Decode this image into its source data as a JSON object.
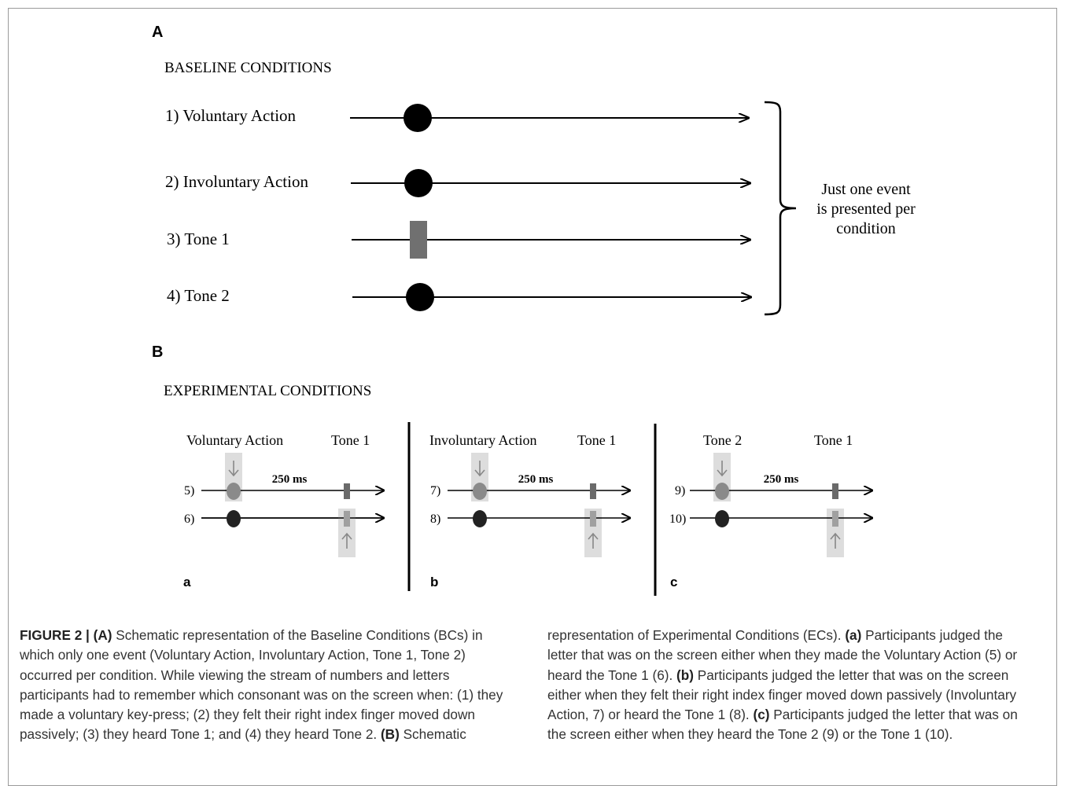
{
  "figure": {
    "panel_a_letter": "A",
    "panel_b_letter": "B",
    "baseline_title": "BASELINE CONDITIONS",
    "baseline_rows": [
      {
        "label": "1) Voluntary Action",
        "event": "circle"
      },
      {
        "label": "2) Involuntary Action",
        "event": "circle"
      },
      {
        "label": "3) Tone 1",
        "event": "rect"
      },
      {
        "label": "4) Tone 2",
        "event": "circle"
      }
    ],
    "brace_note": [
      "Just one event",
      "is presented per",
      "condition"
    ],
    "experimental_title": "EXPERIMENTAL CONDITIONS",
    "interval": "250 ms",
    "sub_panels": [
      {
        "letter": "a",
        "first_event": "Voluntary Action",
        "second_event": "Tone 1",
        "row_nums": [
          "5)",
          "6)"
        ]
      },
      {
        "letter": "b",
        "first_event": "Involuntary Action",
        "second_event": "Tone 1",
        "row_nums": [
          "7)",
          "8)"
        ]
      },
      {
        "letter": "c",
        "first_event": "Tone 2",
        "second_event": "Tone 1",
        "row_nums": [
          "9)",
          "10)"
        ]
      }
    ]
  },
  "caption": {
    "label": "FIGURE 2 |",
    "A_tag": "(A)",
    "A_text": " Schematic representation of the Baseline Conditions (BCs) in which only one event (Voluntary Action, Involuntary Action, Tone 1, Tone 2) occurred per condition. While viewing the stream of numbers and letters participants had to remember which consonant was on the screen when: (1) they made a voluntary key-press; (2) they felt their right index finger moved down passively; (3) they heard Tone 1; and (4) they heard Tone 2. ",
    "B_tag": "(B)",
    "B_text": " Schematic representation of Experimental Conditions (ECs). ",
    "a_tag": "(a)",
    "a_text": " Participants judged the letter that was on the screen either when they made the Voluntary Action (5) or heard the Tone 1 (6). ",
    "b_tag": "(b)",
    "b_text": " Participants judged the letter that was on the screen either when they felt their right index finger moved down passively (Involuntary Action, 7) or heard the Tone 1 (8). ",
    "c_tag": "(c)",
    "c_text": " Participants judged the letter that was on the screen either when they heard the Tone 2 (9) or the Tone 1 (10)."
  }
}
